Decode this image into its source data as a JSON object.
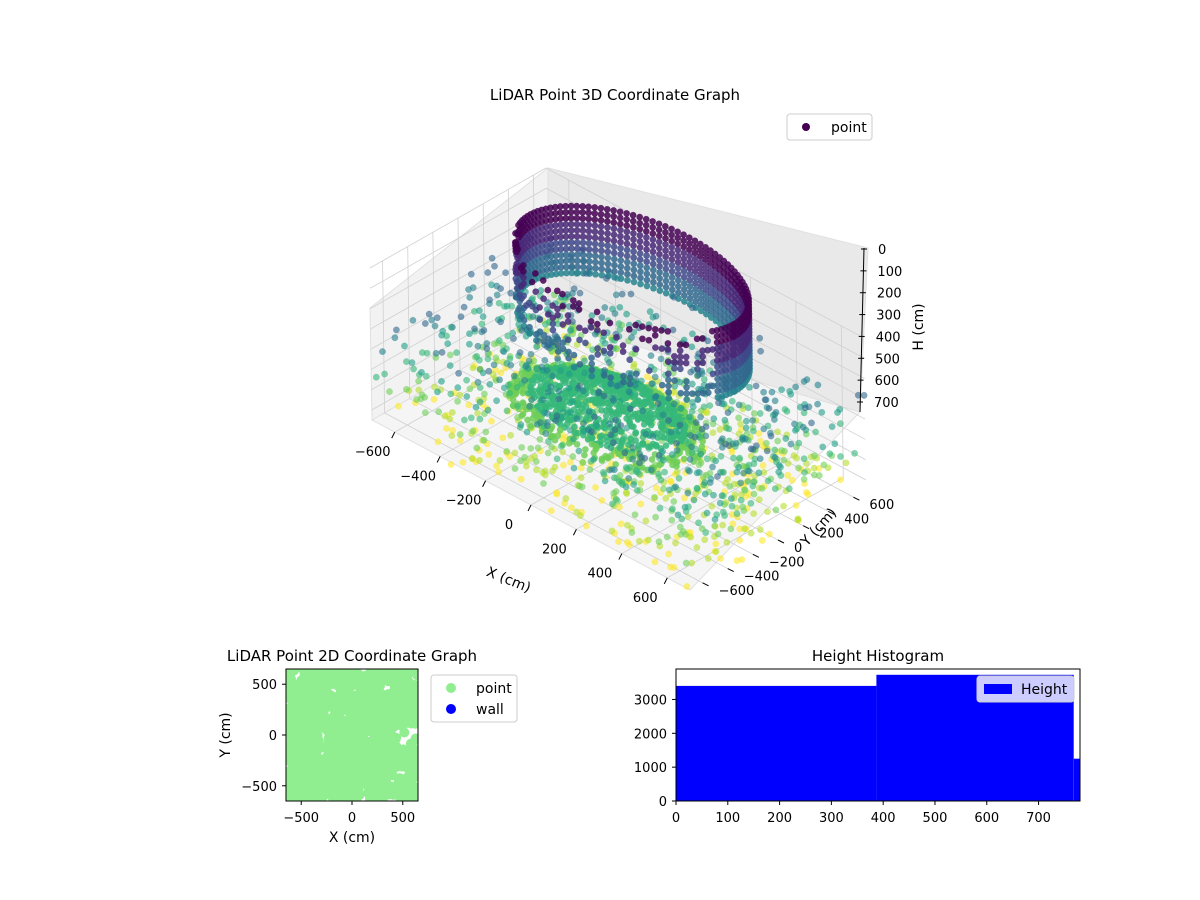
{
  "colors": {
    "viridis": [
      "#440154",
      "#482878",
      "#3e4989",
      "#31688e",
      "#26828e",
      "#1f9e89",
      "#35b779",
      "#6ece58",
      "#b5de2b",
      "#fde725"
    ],
    "point2d": "#90ee90",
    "wall": "#0000ff",
    "hist_bar": "#0000ff"
  },
  "chart_data": [
    {
      "id": "lidar3d",
      "type": "scatter",
      "title": "LiDAR Point 3D Coordinate Graph",
      "xlabel": "X (cm)",
      "ylabel": "Y (cm)",
      "zlabel": "H (cm)",
      "x_ticks": [
        "−600",
        "−400",
        "−200",
        "0",
        "200",
        "400",
        "600"
      ],
      "y_ticks": [
        "−600",
        "−400",
        "−200",
        "0",
        "200",
        "400",
        "600"
      ],
      "z_ticks": [
        "0",
        "100",
        "200",
        "300",
        "400",
        "500",
        "600",
        "700"
      ],
      "xlim": [
        -700,
        700
      ],
      "ylim": [
        -700,
        700
      ],
      "zlim": [
        0,
        750
      ],
      "z_inverted": true,
      "legend": [
        "point"
      ],
      "legend_position": "top-right",
      "grid": true,
      "colormap": "viridis",
      "series": [
        {
          "name": "point",
          "components": [
            {
              "shape": "ring wall",
              "center_x": -100,
              "center_y": 300,
              "radius": 450,
              "h_range": [
                0,
                330
              ]
            },
            {
              "shape": "dome roof",
              "center_x": -50,
              "center_y": 0,
              "radius": 380,
              "peak_h": 480
            },
            {
              "shape": "scattered floor",
              "x_range": [
                -700,
                700
              ],
              "y_range": [
                -700,
                700
              ],
              "h_range": [
                250,
                780
              ]
            }
          ]
        }
      ]
    },
    {
      "id": "lidar2d",
      "type": "scatter",
      "title": "LiDAR Point 2D Coordinate Graph",
      "xlabel": "X (cm)",
      "ylabel": "Y (cm)",
      "x_ticks": [
        "−500",
        "0",
        "500"
      ],
      "y_ticks": [
        "500",
        "0",
        "−500"
      ],
      "xlim": [
        -650,
        650
      ],
      "ylim": [
        -650,
        650
      ],
      "legend": [
        "point",
        "wall"
      ],
      "legend_position": "outside-right",
      "series": [
        {
          "name": "point",
          "coverage": "dense, fills most of the area"
        },
        {
          "name": "wall",
          "coverage": "none visible"
        }
      ]
    },
    {
      "id": "height_hist",
      "type": "bar",
      "title": "Height Histogram",
      "xlabel": "",
      "ylabel": "",
      "x_ticks": [
        "0",
        "100",
        "200",
        "300",
        "400",
        "500",
        "600",
        "700"
      ],
      "y_ticks": [
        "0",
        "1000",
        "2000",
        "3000"
      ],
      "xlim": [
        0,
        780
      ],
      "ylim": [
        0,
        3900
      ],
      "legend": [
        "Height"
      ],
      "legend_position": "top-right",
      "bins": [
        {
          "x0": 0,
          "x1": 387,
          "count": 3400
        },
        {
          "x0": 387,
          "x1": 768,
          "count": 3730
        },
        {
          "x0": 768,
          "x1": 780,
          "count": 1250
        }
      ]
    }
  ]
}
